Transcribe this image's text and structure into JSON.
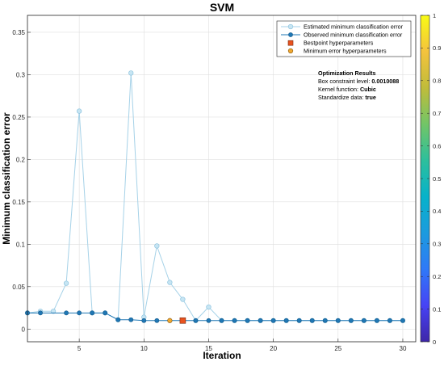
{
  "chart_data": {
    "type": "line",
    "title": "SVM",
    "xlabel": "Iteration",
    "ylabel": "Minimum classification error",
    "xlim": [
      1,
      31
    ],
    "ylim": [
      -0.015,
      0.37
    ],
    "xticks": [
      5,
      10,
      15,
      20,
      25,
      30
    ],
    "yticks": [
      0,
      0.05,
      0.1,
      0.15,
      0.2,
      0.25,
      0.3,
      0.35
    ],
    "grid": true,
    "legend_position": "top-right",
    "series": [
      {
        "name": "Estimated minimum classification error",
        "color": "#a6d2e8",
        "x": [
          1,
          2,
          3,
          4,
          5,
          6,
          7,
          8,
          9,
          10,
          11,
          12,
          13,
          14,
          15,
          16,
          17,
          18,
          19,
          20,
          21,
          22,
          23,
          24,
          25,
          26,
          27,
          28,
          29,
          30
        ],
        "y": [
          0.019,
          0.021,
          0.021,
          0.054,
          0.257,
          0.019,
          0.019,
          0.011,
          0.302,
          0.014,
          0.098,
          0.055,
          0.035,
          0.01,
          0.026,
          0.01,
          0.01,
          0.01,
          0.01,
          0.01,
          0.01,
          0.01,
          0.01,
          0.01,
          0.01,
          0.01,
          0.01,
          0.01,
          0.01,
          0.01
        ]
      },
      {
        "name": "Observed minimum classification error",
        "color": "#1f77b4",
        "x": [
          1,
          2,
          4,
          5,
          6,
          7,
          8,
          9,
          10,
          11,
          12,
          13,
          14,
          15,
          16,
          17,
          18,
          19,
          20,
          21,
          22,
          23,
          24,
          25,
          26,
          27,
          28,
          29,
          30
        ],
        "y": [
          0.019,
          0.019,
          0.019,
          0.019,
          0.019,
          0.019,
          0.011,
          0.011,
          0.01,
          0.01,
          0.01,
          0.01,
          0.01,
          0.01,
          0.01,
          0.01,
          0.01,
          0.01,
          0.01,
          0.01,
          0.01,
          0.01,
          0.01,
          0.01,
          0.01,
          0.01,
          0.01,
          0.01,
          0.01
        ]
      }
    ],
    "bestpoint": {
      "name": "Bestpoint hyperparameters",
      "x": 13,
      "y": 0.01,
      "color": "#e8531f"
    },
    "minimum_error": {
      "name": "Minimum error hyperparameters",
      "x": 12,
      "y": 0.01,
      "color": "#f0a830"
    },
    "colorbar": {
      "ticks": [
        0,
        0.1,
        0.2,
        0.3,
        0.4,
        0.5,
        0.6,
        0.7,
        0.8,
        0.9,
        1
      ],
      "tick_labels": [
        "0",
        "0.1",
        "0.2",
        "0.3",
        "0.4",
        "0.5",
        "0.6",
        "0.7",
        "0.8",
        "0.9",
        "1"
      ],
      "colormap": [
        "#3e26a8",
        "#4743f5",
        "#2f79f8",
        "#1c9bde",
        "#07b2ca",
        "#2dbf9c",
        "#72c567",
        "#c0bc3a",
        "#f4c33d",
        "#f9fb15"
      ]
    },
    "annotation": {
      "title": "Optimization Results",
      "lines": [
        {
          "label": "Box constraint level: ",
          "value": "0.0010088"
        },
        {
          "label": "Kernel function: ",
          "value": "Cubic"
        },
        {
          "label": "Standardize data: ",
          "value": "true"
        }
      ]
    }
  }
}
